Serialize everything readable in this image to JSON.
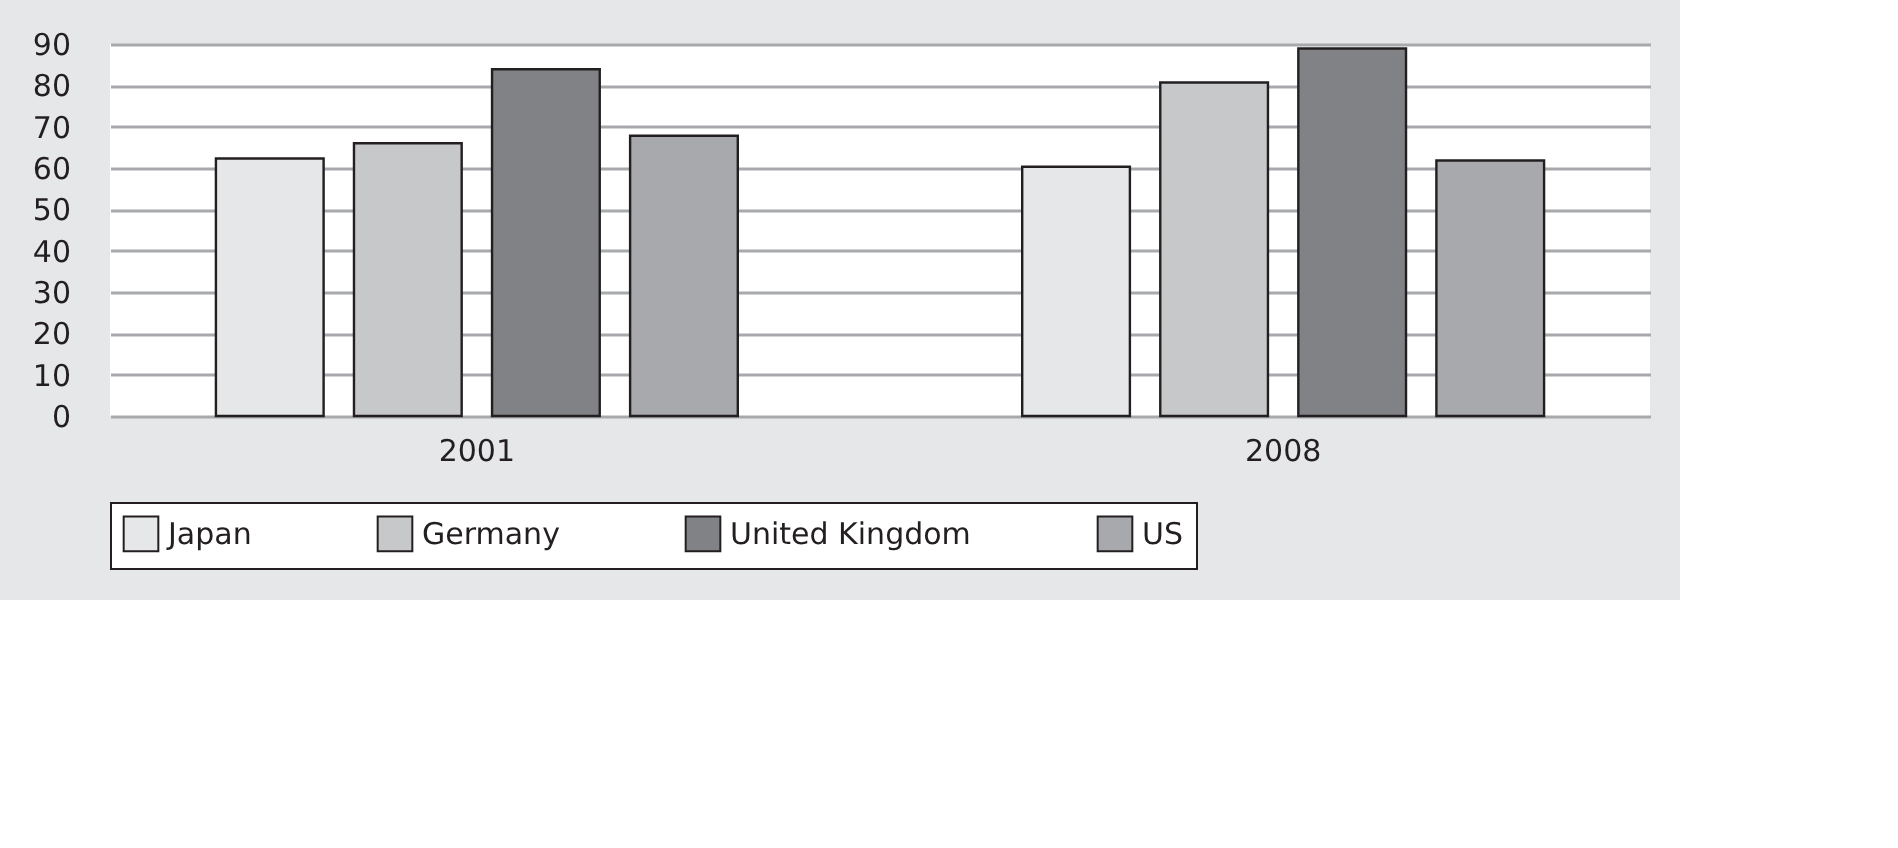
{
  "chart_data": {
    "type": "bar",
    "categories": [
      "2001",
      "2008"
    ],
    "series": [
      {
        "name": "Japan",
        "color": "#e6e7e8",
        "values": [
          62.3,
          60.3
        ]
      },
      {
        "name": "Germany",
        "color": "#c7c8ca",
        "values": [
          66.0,
          80.7
        ]
      },
      {
        "name": "United Kingdom",
        "color": "#808285",
        "values": [
          83.9,
          88.9
        ]
      },
      {
        "name": "US",
        "color": "#a7a9ac",
        "values": [
          67.8,
          61.8
        ]
      }
    ],
    "ylim": [
      0,
      90
    ],
    "yticks": [
      0,
      10,
      20,
      30,
      40,
      50,
      60,
      70,
      80,
      90
    ],
    "grid": "y",
    "legend": "bottom"
  }
}
